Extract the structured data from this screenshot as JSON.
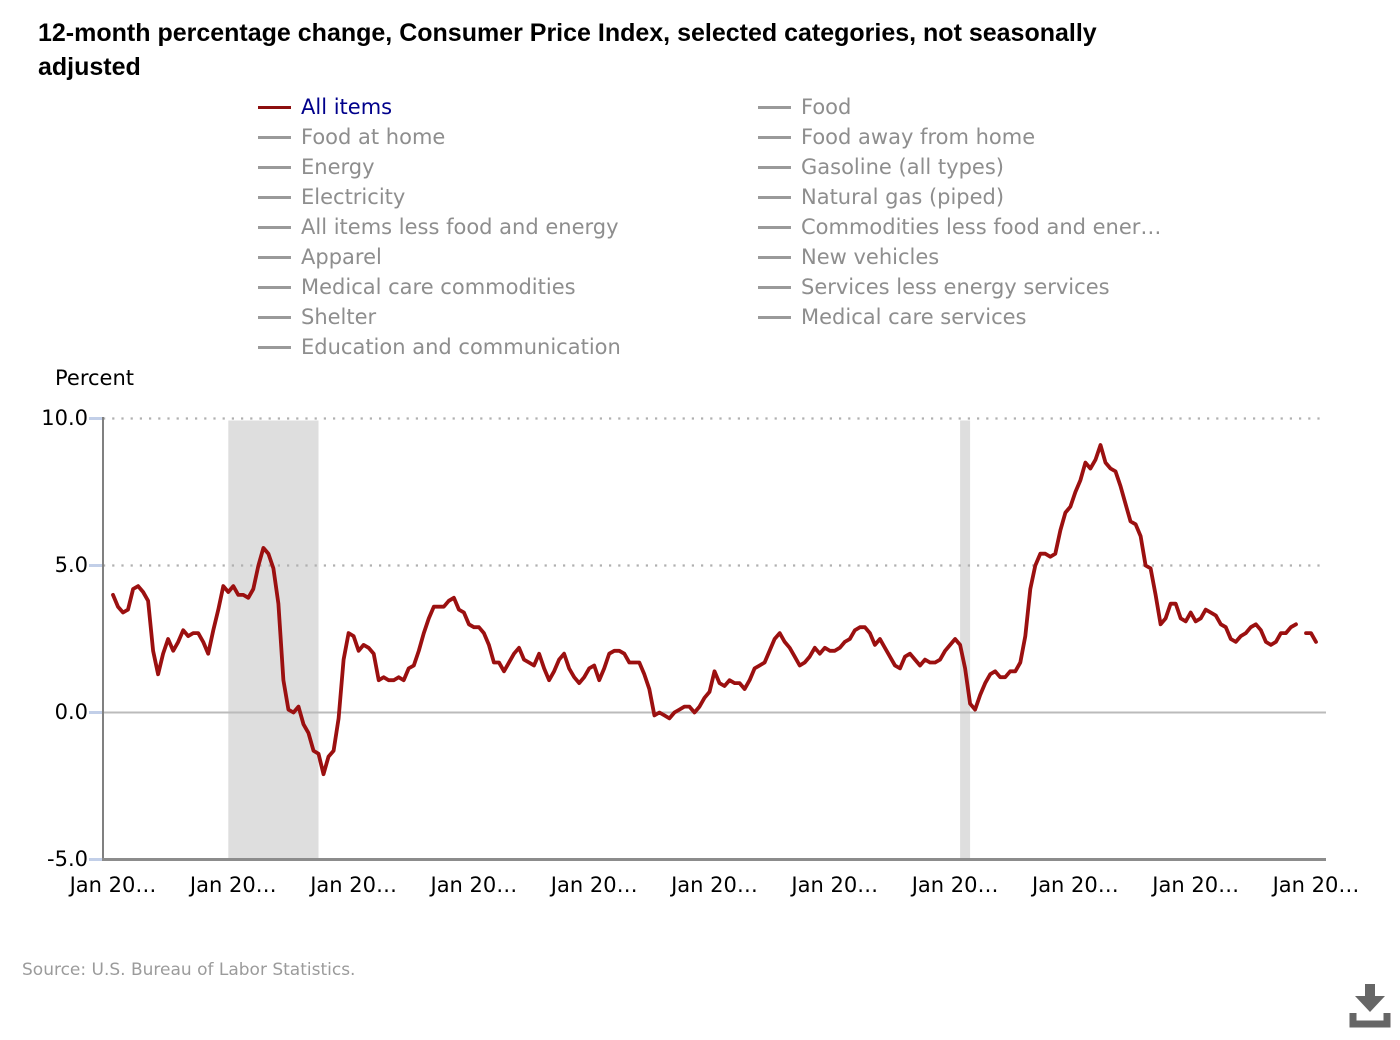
{
  "title": "12-month percentage change, Consumer Price Index, selected categories, not seasonally adjusted",
  "source": "Source: U.S. Bureau of Labor Statistics.",
  "icons": {
    "download": "arrow-into-tray"
  },
  "colors": {
    "series_line": "#9b1010",
    "selected_swatch": "#8c0e0e",
    "selected_legend_text": "#00008b",
    "legend_text": "#8e8e8e",
    "legend_swatch": "#9a9a9a",
    "recession_band": "#dedede",
    "dotted_gridline": "#b0b0b0",
    "zero_line": "#bbbbbb",
    "axis_line": "#808080",
    "bottom_axis_line": "#8c8c8c",
    "y_tick_mark": "#c2cfe8",
    "source_text": "#9b9b9b",
    "download_icon": "#666666"
  },
  "legend": {
    "columns": [
      {
        "items": [
          {
            "label": "All items",
            "selected": true
          },
          {
            "label": "Food at home",
            "selected": false
          },
          {
            "label": "Energy",
            "selected": false
          },
          {
            "label": "Electricity",
            "selected": false
          },
          {
            "label": "All items less food and energy",
            "selected": false
          },
          {
            "label": "Apparel",
            "selected": false
          },
          {
            "label": "Medical care commodities",
            "selected": false
          },
          {
            "label": "Shelter",
            "selected": false
          },
          {
            "label": "Education and communication",
            "selected": false
          }
        ]
      },
      {
        "items": [
          {
            "label": "Food",
            "selected": false
          },
          {
            "label": "Food away from home",
            "selected": false
          },
          {
            "label": "Gasoline (all types)",
            "selected": false
          },
          {
            "label": "Natural gas (piped)",
            "selected": false
          },
          {
            "label": "Commodities less food and ener…",
            "selected": false
          },
          {
            "label": "New vehicles",
            "selected": false
          },
          {
            "label": "Services less energy services",
            "selected": false
          },
          {
            "label": "Medical care services",
            "selected": false
          }
        ]
      }
    ]
  },
  "chart_data": {
    "type": "line",
    "title": "12-month percentage change, Consumer Price Index, selected categories, not seasonally adjusted",
    "ylabel": "Percent",
    "xlabel": "",
    "ylim": [
      -5.0,
      10.0
    ],
    "grid": "dotted horizontal at 5.0 and 10.0, solid at 0.0",
    "legend_position": "top",
    "y_tick_values": [
      10.0,
      5.0,
      0.0,
      -5.0
    ],
    "y_tick_labels": [
      "10.0",
      "5.0",
      "0.0",
      "-5.0"
    ],
    "x_tick_labels": [
      "Jan 20…",
      "Jan 20…",
      "Jan 20…",
      "Jan 20…",
      "Jan 20…",
      "Jan 20…",
      "Jan 20…",
      "Jan 20…",
      "Jan 20…",
      "Jan 20…",
      "Jan 20…"
    ],
    "x_tick_interval_months": 24,
    "x_start": "2006-01",
    "x_end": "2026-01",
    "recession_bands": [
      {
        "start": "2007-12",
        "end": "2009-06"
      },
      {
        "start": "2020-02",
        "end": "2020-04"
      }
    ],
    "series": [
      {
        "name": "All items",
        "color": "#9b1010",
        "start": "2006-01",
        "frequency": "monthly",
        "values": [
          4.0,
          3.6,
          3.4,
          3.5,
          4.2,
          4.3,
          4.1,
          3.8,
          2.1,
          1.3,
          2.0,
          2.5,
          2.1,
          2.4,
          2.8,
          2.6,
          2.7,
          2.7,
          2.4,
          2.0,
          2.8,
          3.5,
          4.3,
          4.1,
          4.3,
          4.0,
          4.0,
          3.9,
          4.2,
          5.0,
          5.6,
          5.4,
          4.9,
          3.7,
          1.1,
          0.1,
          0.0,
          0.2,
          -0.4,
          -0.7,
          -1.3,
          -1.4,
          -2.1,
          -1.5,
          -1.3,
          -0.2,
          1.8,
          2.7,
          2.6,
          2.1,
          2.3,
          2.2,
          2.0,
          1.1,
          1.2,
          1.1,
          1.1,
          1.2,
          1.1,
          1.5,
          1.6,
          2.1,
          2.7,
          3.2,
          3.6,
          3.6,
          3.6,
          3.8,
          3.9,
          3.5,
          3.4,
          3.0,
          2.9,
          2.9,
          2.7,
          2.3,
          1.7,
          1.7,
          1.4,
          1.7,
          2.0,
          2.2,
          1.8,
          1.7,
          1.6,
          2.0,
          1.5,
          1.1,
          1.4,
          1.8,
          2.0,
          1.5,
          1.2,
          1.0,
          1.2,
          1.5,
          1.6,
          1.1,
          1.5,
          2.0,
          2.1,
          2.1,
          2.0,
          1.7,
          1.7,
          1.7,
          1.3,
          0.8,
          -0.1,
          0.0,
          -0.1,
          -0.2,
          0.0,
          0.1,
          0.2,
          0.2,
          0.0,
          0.2,
          0.5,
          0.7,
          1.4,
          1.0,
          0.9,
          1.1,
          1.0,
          1.0,
          0.8,
          1.1,
          1.5,
          1.6,
          1.7,
          2.1,
          2.5,
          2.7,
          2.4,
          2.2,
          1.9,
          1.6,
          1.7,
          1.9,
          2.2,
          2.0,
          2.2,
          2.1,
          2.1,
          2.2,
          2.4,
          2.5,
          2.8,
          2.9,
          2.9,
          2.7,
          2.3,
          2.5,
          2.2,
          1.9,
          1.6,
          1.5,
          1.9,
          2.0,
          1.8,
          1.6,
          1.8,
          1.7,
          1.7,
          1.8,
          2.1,
          2.3,
          2.5,
          2.3,
          1.5,
          0.3,
          0.1,
          0.6,
          1.0,
          1.3,
          1.4,
          1.2,
          1.2,
          1.4,
          1.4,
          1.7,
          2.6,
          4.2,
          5.0,
          5.4,
          5.4,
          5.3,
          5.4,
          6.2,
          6.8,
          7.0,
          7.5,
          7.9,
          8.5,
          8.3,
          8.6,
          9.1,
          8.5,
          8.3,
          8.2,
          7.7,
          7.1,
          6.5,
          6.4,
          6.0,
          5.0,
          4.9,
          4.0,
          3.0,
          3.2,
          3.7,
          3.7,
          3.2,
          3.1,
          3.4,
          3.1,
          3.2,
          3.5,
          3.4,
          3.3,
          3.0,
          2.9,
          2.5,
          2.4,
          2.6,
          2.7,
          2.9,
          3.0,
          2.8,
          2.4,
          2.3,
          2.4,
          2.7,
          2.7,
          2.9,
          3.0,
          null,
          2.7,
          2.7,
          2.4
        ]
      }
    ]
  }
}
